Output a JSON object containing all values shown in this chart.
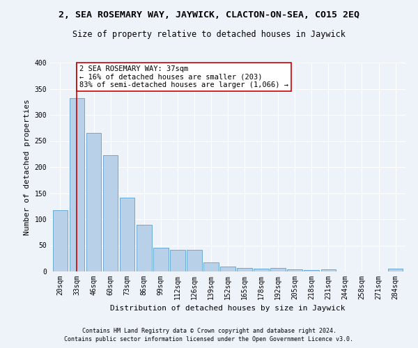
{
  "title": "2, SEA ROSEMARY WAY, JAYWICK, CLACTON-ON-SEA, CO15 2EQ",
  "subtitle": "Size of property relative to detached houses in Jaywick",
  "xlabel": "Distribution of detached houses by size in Jaywick",
  "ylabel": "Number of detached properties",
  "categories": [
    "20sqm",
    "33sqm",
    "46sqm",
    "60sqm",
    "73sqm",
    "86sqm",
    "99sqm",
    "112sqm",
    "126sqm",
    "139sqm",
    "152sqm",
    "165sqm",
    "178sqm",
    "192sqm",
    "205sqm",
    "218sqm",
    "231sqm",
    "244sqm",
    "258sqm",
    "271sqm",
    "284sqm"
  ],
  "values": [
    117,
    332,
    266,
    223,
    141,
    89,
    45,
    42,
    42,
    18,
    10,
    7,
    6,
    7,
    4,
    3,
    4,
    0,
    0,
    0,
    5
  ],
  "bar_color": "#b8d0e8",
  "bar_edge_color": "#6aaad4",
  "vline_x": 1,
  "vline_color": "#cc0000",
  "annotation_text": "2 SEA ROSEMARY WAY: 37sqm\n← 16% of detached houses are smaller (203)\n83% of semi-detached houses are larger (1,066) →",
  "annotation_box_color": "#ffffff",
  "annotation_box_edge": "#cc0000",
  "ylim": [
    0,
    400
  ],
  "yticks": [
    0,
    50,
    100,
    150,
    200,
    250,
    300,
    350,
    400
  ],
  "footer1": "Contains HM Land Registry data © Crown copyright and database right 2024.",
  "footer2": "Contains public sector information licensed under the Open Government Licence v3.0.",
  "bg_color": "#eef2f9",
  "plot_bg_color": "#eef2f9",
  "title_fontsize": 9.5,
  "subtitle_fontsize": 8.5,
  "axis_label_fontsize": 8,
  "tick_fontsize": 7,
  "footer_fontsize": 6,
  "annotation_fontsize": 7.5
}
